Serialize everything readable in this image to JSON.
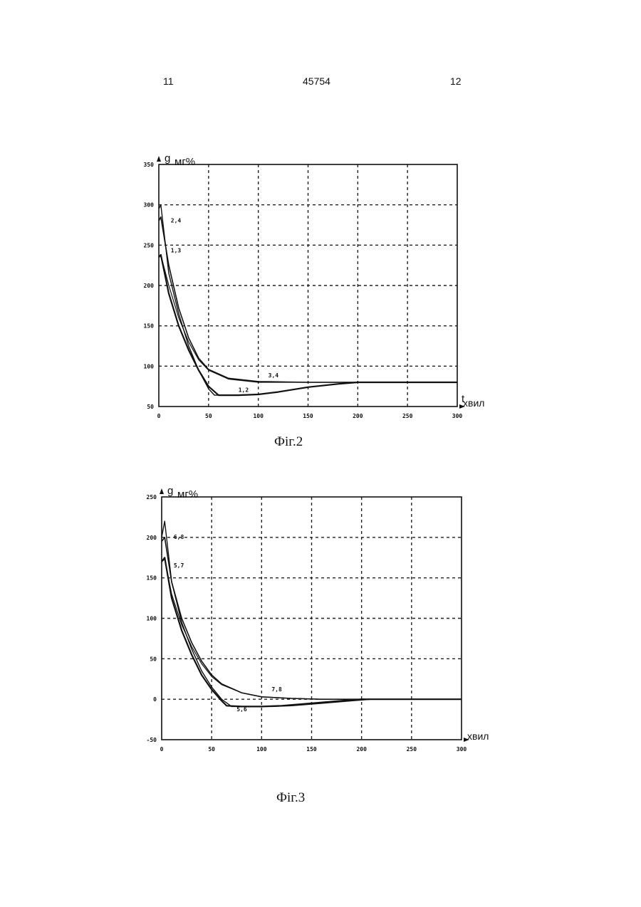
{
  "header": {
    "page_left": "11",
    "doc_number": "45754",
    "page_right": "12"
  },
  "chart_data": [
    {
      "type": "line",
      "caption": "Фіг.2",
      "ylabel_main": "g",
      "ylabel_unit": "мг%",
      "xlabel_main": "t",
      "xlabel_unit": "хвил",
      "xlim": [
        0,
        300
      ],
      "ylim": [
        50,
        350
      ],
      "xticks": [
        0,
        50,
        100,
        150,
        200,
        250,
        300
      ],
      "yticks": [
        50,
        100,
        150,
        200,
        250,
        300,
        350
      ],
      "grid": true,
      "series": [
        {
          "name": "1",
          "x": [
            0,
            2,
            10,
            20,
            30,
            40,
            50,
            60,
            80,
            100,
            120,
            150,
            180,
            200,
            220,
            300
          ],
          "y": [
            235,
            238,
            190,
            150,
            120,
            95,
            75,
            64,
            64,
            65,
            68,
            74,
            78,
            80,
            80,
            80
          ]
        },
        {
          "name": "2",
          "x": [
            0,
            2,
            10,
            20,
            30,
            40,
            50,
            56,
            70,
            100,
            120,
            150,
            180,
            200,
            220,
            300
          ],
          "y": [
            295,
            300,
            215,
            165,
            125,
            95,
            72,
            64,
            64,
            65,
            68,
            74,
            78,
            80,
            80,
            80
          ]
        },
        {
          "name": "3",
          "x": [
            0,
            2,
            10,
            20,
            30,
            40,
            50,
            70,
            100,
            150,
            200,
            300
          ],
          "y": [
            235,
            238,
            200,
            160,
            130,
            108,
            95,
            84,
            80,
            80,
            80,
            80
          ]
        },
        {
          "name": "4",
          "x": [
            0,
            2,
            10,
            20,
            30,
            40,
            50,
            70,
            100,
            150,
            200,
            300
          ],
          "y": [
            280,
            285,
            225,
            172,
            135,
            110,
            96,
            85,
            81,
            80,
            80,
            80
          ]
        }
      ],
      "annotations": [
        {
          "text": "2,4",
          "x": 12,
          "y": 278
        },
        {
          "text": "1,3",
          "x": 12,
          "y": 241
        },
        {
          "text": "3,4",
          "x": 110,
          "y": 86
        },
        {
          "text": "1,2",
          "x": 80,
          "y": 68
        }
      ]
    },
    {
      "type": "line",
      "caption": "Фіг.3",
      "ylabel_main": "g",
      "ylabel_unit": "мг%",
      "xlabel_main": "",
      "xlabel_unit": "хвил",
      "xlim": [
        0,
        300
      ],
      "ylim": [
        -50,
        250
      ],
      "xticks": [
        0,
        50,
        100,
        150,
        200,
        250,
        300
      ],
      "yticks": [
        -50,
        0,
        50,
        100,
        150,
        200,
        250
      ],
      "grid": true,
      "series": [
        {
          "name": "5",
          "x": [
            0,
            3,
            10,
            20,
            30,
            40,
            50,
            60,
            65,
            80,
            100,
            120,
            150,
            180,
            200,
            300
          ],
          "y": [
            170,
            175,
            125,
            85,
            55,
            30,
            12,
            -2,
            -8,
            -9,
            -9,
            -8,
            -5,
            -2,
            0,
            0
          ]
        },
        {
          "name": "6",
          "x": [
            0,
            3,
            10,
            20,
            30,
            40,
            50,
            60,
            70,
            90,
            110,
            130,
            160,
            190,
            210,
            300
          ],
          "y": [
            200,
            220,
            145,
            95,
            62,
            35,
            15,
            0,
            -9,
            -9,
            -9,
            -8,
            -5,
            -2,
            0,
            0
          ]
        },
        {
          "name": "7",
          "x": [
            0,
            3,
            10,
            20,
            30,
            40,
            50,
            60,
            80,
            100,
            130,
            160,
            200,
            300
          ],
          "y": [
            170,
            173,
            130,
            92,
            65,
            44,
            28,
            18,
            8,
            3,
            1,
            0,
            0,
            0
          ]
        },
        {
          "name": "8",
          "x": [
            0,
            3,
            10,
            20,
            30,
            40,
            50,
            60,
            80,
            100,
            130,
            160,
            200,
            300
          ],
          "y": [
            195,
            200,
            145,
            100,
            70,
            47,
            30,
            19,
            8,
            3,
            1,
            0,
            0,
            0
          ]
        }
      ],
      "annotations": [
        {
          "text": "6,8",
          "x": 12,
          "y": 198
        },
        {
          "text": "5,7",
          "x": 12,
          "y": 163
        },
        {
          "text": "7,8",
          "x": 110,
          "y": 10
        },
        {
          "text": "5,6",
          "x": 75,
          "y": -15
        }
      ]
    }
  ]
}
